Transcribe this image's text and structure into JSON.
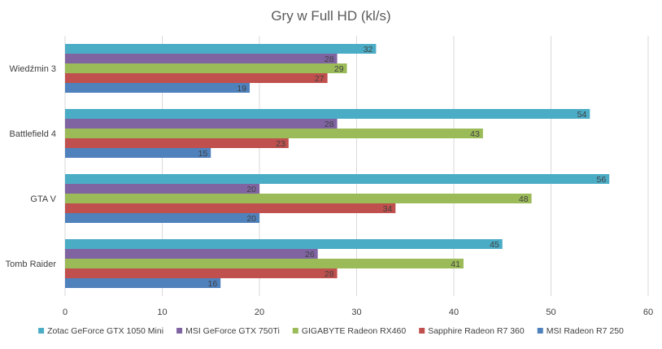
{
  "chart_data": {
    "type": "bar",
    "orientation": "horizontal",
    "title": "Gry w Full HD (kl/s)",
    "xlabel": "",
    "ylabel": "",
    "categories": [
      "Wiedźmin 3",
      "Battlefield 4",
      "GTA V",
      "Tomb Raider"
    ],
    "series": [
      {
        "name": "Zotac GeForce GTX 1050 Mini",
        "color": "#4bacc6",
        "values": [
          32,
          54,
          56,
          45
        ]
      },
      {
        "name": "MSI GeForce GTX 750Ti",
        "color": "#8064a2",
        "values": [
          28,
          28,
          20,
          26
        ]
      },
      {
        "name": "GIGABYTE Radeon RX460",
        "color": "#9bbb59",
        "values": [
          29,
          43,
          48,
          41
        ]
      },
      {
        "name": "Sapphire Radeon R7 360",
        "color": "#c0504d",
        "values": [
          27,
          23,
          34,
          28
        ]
      },
      {
        "name": "MSI Radeon R7 250",
        "color": "#4f81bd",
        "values": [
          19,
          15,
          20,
          16
        ]
      }
    ],
    "xlim": [
      0,
      60
    ],
    "xticks": [
      0,
      10,
      20,
      30,
      40,
      50,
      60
    ],
    "grid": true,
    "legend_position": "bottom",
    "data_labels": true
  }
}
